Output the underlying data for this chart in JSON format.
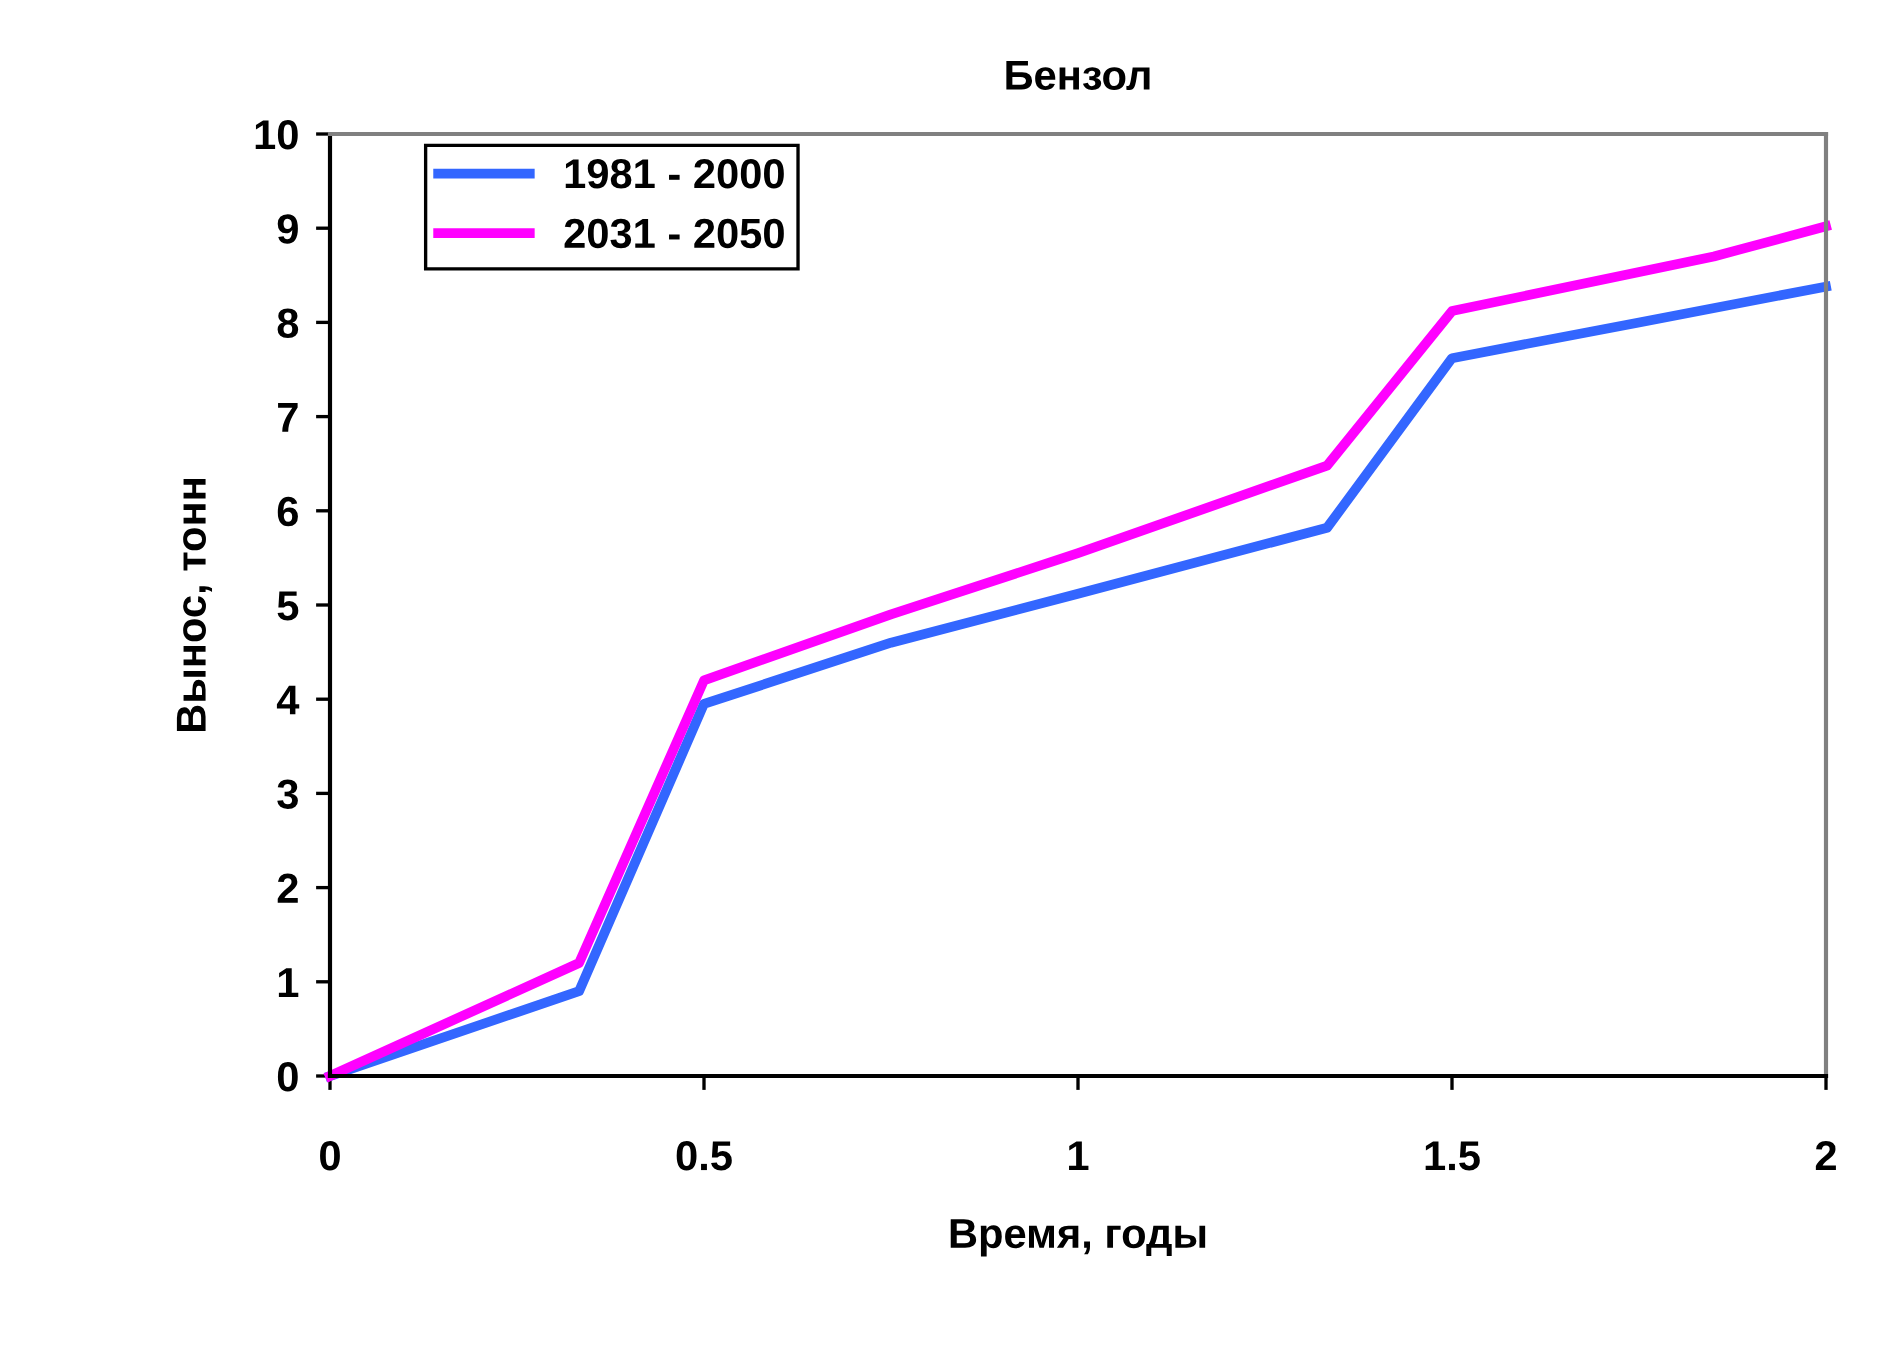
{
  "chart_data": {
    "type": "line",
    "title": "Бензол",
    "xlabel": "Время, годы",
    "ylabel": "Вынос, тонн",
    "xlim": [
      0,
      2
    ],
    "xticks": [
      0,
      0.5,
      1,
      1.5,
      2
    ],
    "ylim": [
      0,
      10
    ],
    "yticks": [
      0,
      1,
      2,
      3,
      4,
      5,
      6,
      7,
      8,
      9,
      10
    ],
    "grid": false,
    "legend": "top left",
    "marker": "none",
    "line_style": "solid",
    "series": [
      {
        "name": "1981 - 2000",
        "color": "#3366ff",
        "x": [
          0,
          0.333,
          0.5,
          0.75,
          1,
          1.333,
          1.5,
          1.75,
          2
        ],
        "values": [
          0,
          0.9,
          3.95,
          4.6,
          5.12,
          5.82,
          7.62,
          8.0,
          8.38
        ]
      },
      {
        "name": "2031 - 2050",
        "color": "#ff00ff",
        "x": [
          0,
          0.333,
          0.5,
          0.75,
          1,
          1.333,
          1.5,
          1.85,
          2
        ],
        "values": [
          0,
          1.2,
          4.2,
          4.9,
          5.55,
          6.48,
          8.12,
          8.7,
          9.02
        ]
      }
    ]
  }
}
